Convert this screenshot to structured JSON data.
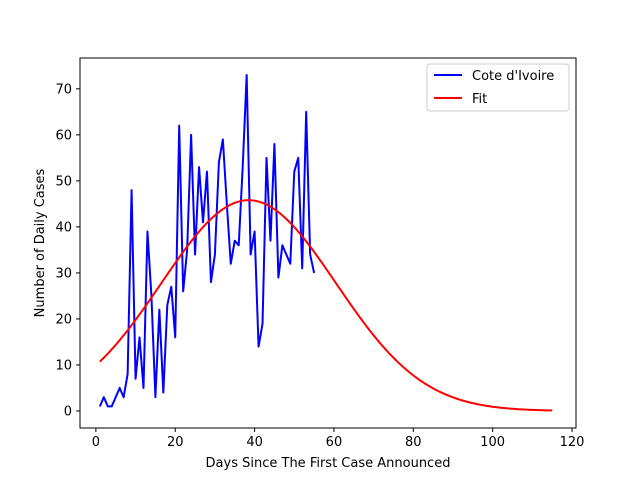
{
  "chart_data": {
    "type": "line",
    "xlabel": "Days Since The First Case Announced",
    "ylabel": "Number of Daily Cases",
    "xlim": [
      -4,
      121
    ],
    "ylim": [
      -3.7,
      76.7
    ],
    "xticks": [
      0,
      20,
      40,
      60,
      80,
      100,
      120
    ],
    "yticks": [
      0,
      10,
      20,
      30,
      40,
      50,
      60,
      70
    ],
    "grid": false,
    "legend_position": "top-right",
    "series": [
      {
        "name": "Cote d'Ivoire",
        "color": "#0000ff",
        "x": [
          1,
          2,
          3,
          4,
          5,
          6,
          7,
          8,
          9,
          10,
          11,
          12,
          13,
          14,
          15,
          16,
          17,
          18,
          19,
          20,
          21,
          22,
          23,
          24,
          25,
          26,
          27,
          28,
          29,
          30,
          31,
          32,
          33,
          34,
          35,
          36,
          37,
          38,
          39,
          40,
          41,
          42,
          43,
          44,
          45,
          46,
          47,
          48,
          49,
          50,
          51,
          52,
          53,
          54,
          55
        ],
        "y": [
          1,
          3,
          1,
          1,
          3,
          5,
          3,
          8,
          48,
          7,
          16,
          5,
          39,
          25,
          3,
          22,
          4,
          23,
          27,
          16,
          62,
          26,
          35,
          60,
          34,
          53,
          41,
          52,
          28,
          34,
          54,
          59,
          45,
          32,
          37,
          36,
          53,
          73,
          34,
          39,
          14,
          19,
          55,
          37,
          58,
          29,
          36,
          34,
          32,
          52,
          55,
          31,
          65,
          34,
          30
        ]
      },
      {
        "name": "Fit",
        "color": "#ff0000",
        "model": "gaussian",
        "peak": 45.8,
        "center": 38.5,
        "sigma": 22.0,
        "x_start": 1,
        "x_end": 115
      }
    ]
  }
}
